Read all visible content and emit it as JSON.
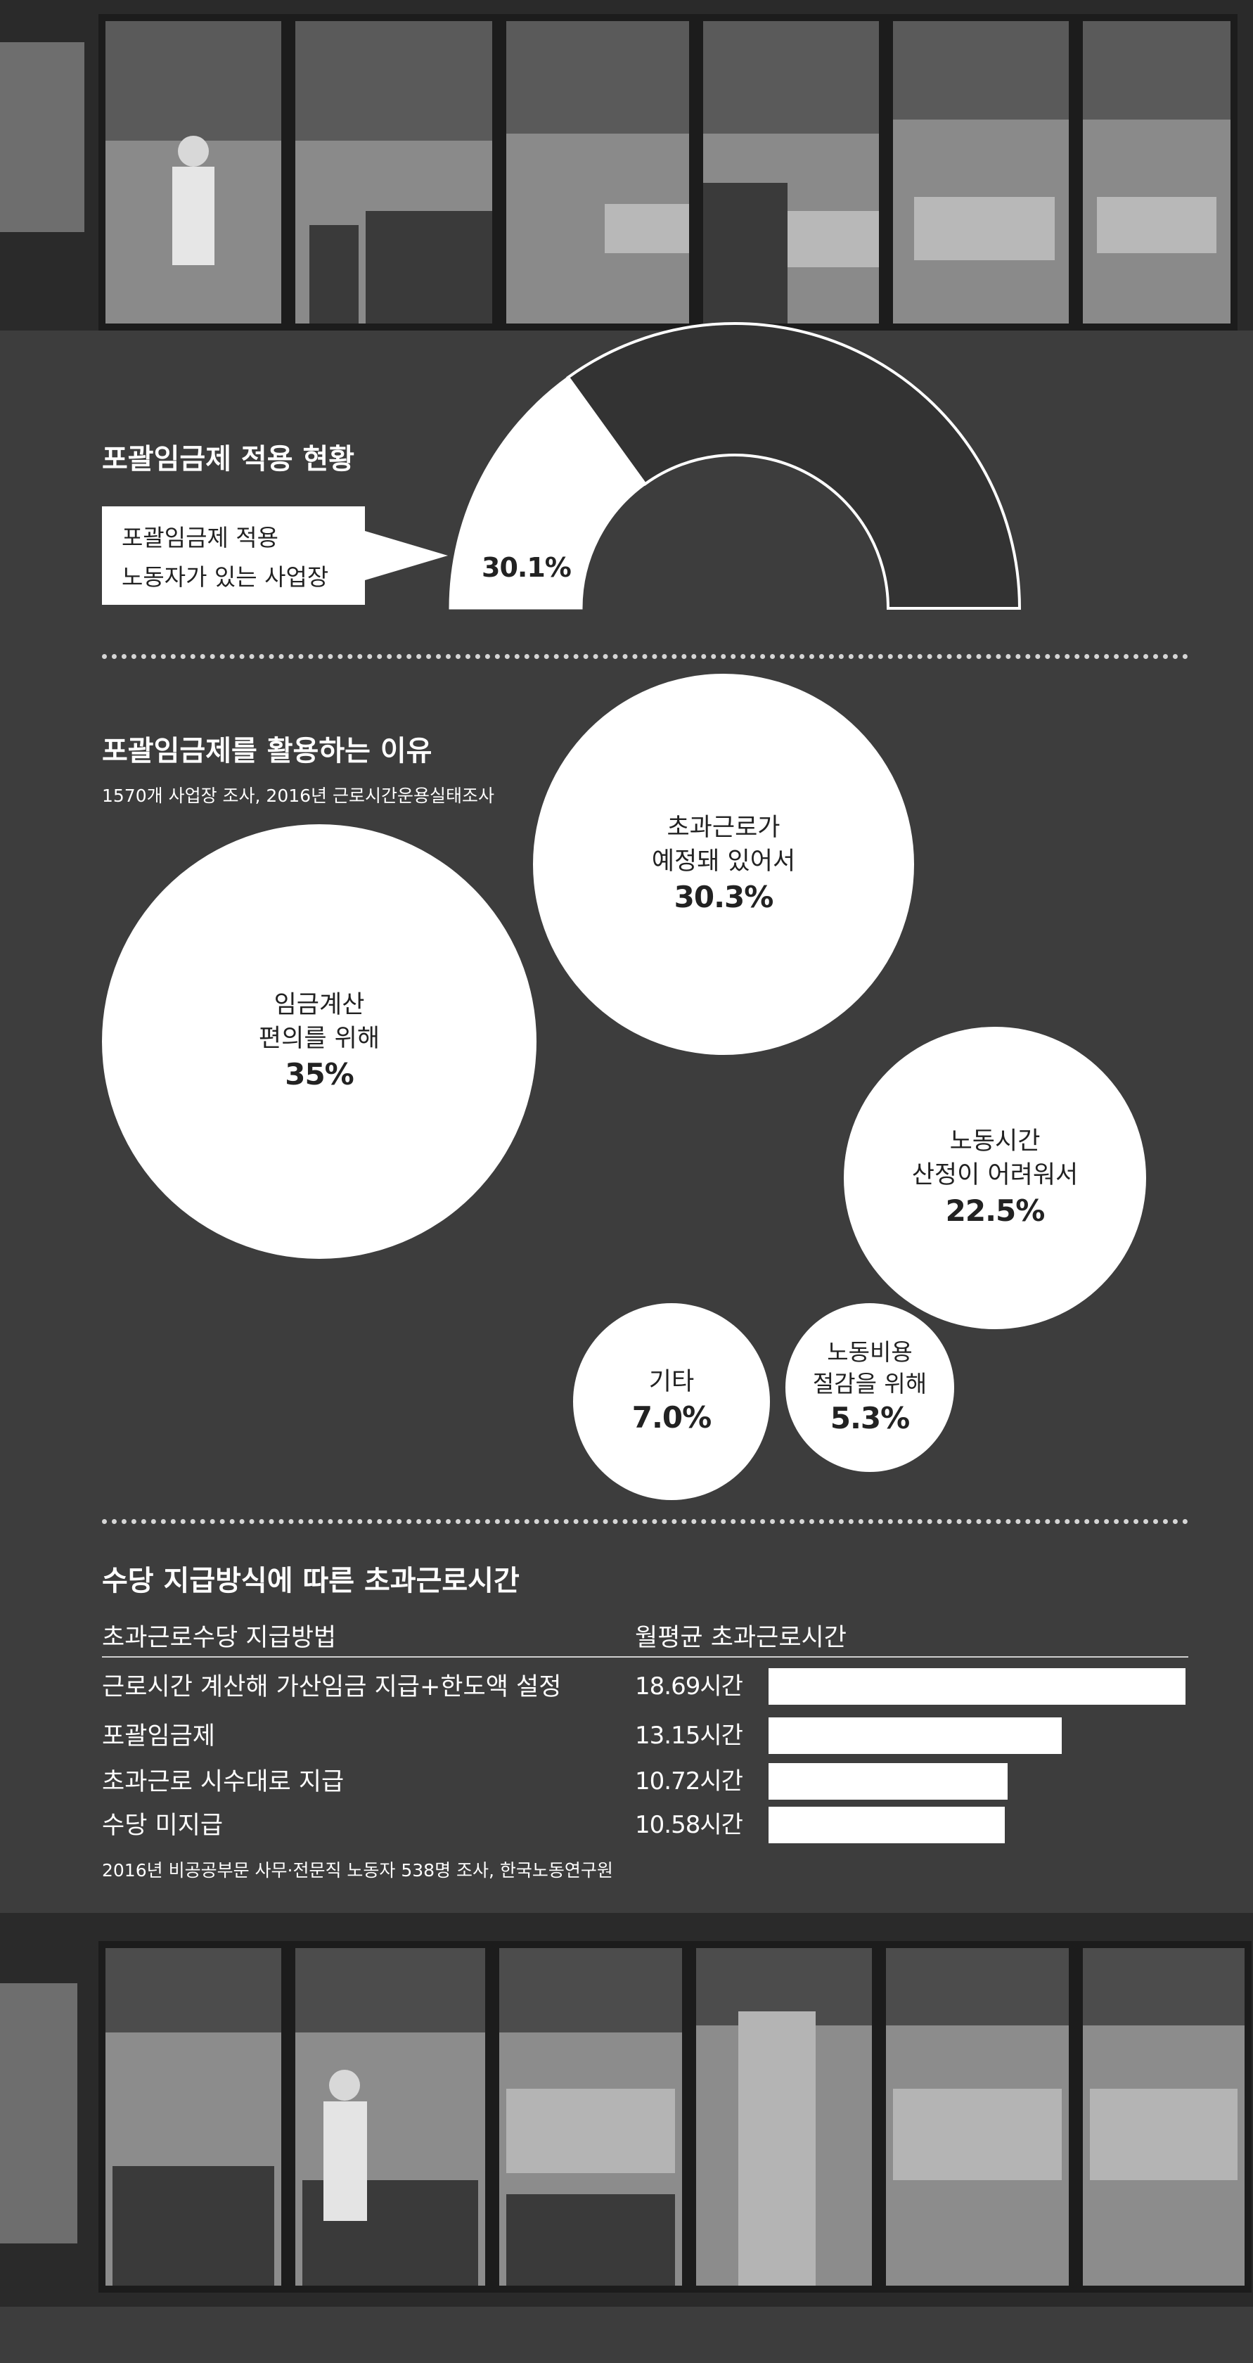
{
  "section1": {
    "title": "포괄임금제 적용 현황",
    "callout_lines": [
      "포괄임금제 적용",
      "노동자가 있는 사업장"
    ],
    "value_label": "30.1%",
    "value_pct": 30.1,
    "colors": {
      "applied": "#ffffff",
      "not_applied": "#333333",
      "outline": "#ffffff"
    }
  },
  "section2": {
    "title": "포괄임금제를 활용하는 이유",
    "subtitle": "1570개 사업장 조사, 2016년 근로시간운용실태조사",
    "bubbles": [
      {
        "lines": [
          "임금계산",
          "편의를 위해"
        ],
        "value_label": "35%",
        "value": 35
      },
      {
        "lines": [
          "초과근로가",
          "예정돼 있어서"
        ],
        "value_label": "30.3%",
        "value": 30.3
      },
      {
        "lines": [
          "노동시간",
          "산정이 어려워서"
        ],
        "value_label": "22.5%",
        "value": 22.5
      },
      {
        "lines": [
          "기타"
        ],
        "value_label": "7.0%",
        "value": 7.0
      },
      {
        "lines": [
          "노동비용",
          "절감을 위해"
        ],
        "value_label": "5.3%",
        "value": 5.3
      }
    ]
  },
  "section3": {
    "title": "수당 지급방식에 따른 초과근로시간",
    "col_headers": [
      "초과근로수당 지급방법",
      "월평균 초과근로시간"
    ],
    "rows": [
      {
        "label": "근로시간 계산해 가산임금 지급+한도액 설정",
        "value_label": "18.69시간",
        "value": 18.69
      },
      {
        "label": "포괄임금제",
        "value_label": "13.15시간",
        "value": 13.15
      },
      {
        "label": "초과근로 시수대로 지급",
        "value_label": "10.72시간",
        "value": 10.72
      },
      {
        "label": "수당 미지급",
        "value_label": "10.58시간",
        "value": 10.58
      }
    ],
    "source": "2016년 비공공부문 사무·전문직 노동자 538명 조사, 한국노동연구원"
  },
  "chart_data": [
    {
      "type": "pie",
      "title": "포괄임금제 적용 현황",
      "labels": [
        "포괄임금제 적용 노동자가 있는 사업장",
        ""
      ],
      "values": [
        30.1,
        69.9
      ],
      "unit": "%"
    },
    {
      "type": "bubble",
      "title": "포괄임금제를 활용하는 이유",
      "subtitle": "1570개 사업장 조사, 2016년 근로시간운용실태조사",
      "categories": [
        "임금계산 편의를 위해",
        "초과근로가 예정돼 있어서",
        "노동시간 산정이 어려워서",
        "기타",
        "노동비용 절감을 위해"
      ],
      "values": [
        35,
        30.3,
        22.5,
        7.0,
        5.3
      ],
      "unit": "%"
    },
    {
      "type": "bar",
      "orientation": "horizontal",
      "title": "수당 지급방식에 따른 초과근로시간",
      "categories": [
        "근로시간 계산해 가산임금 지급+한도액 설정",
        "포괄임금제",
        "초과근로 시수대로 지급",
        "수당 미지급"
      ],
      "values": [
        18.69,
        13.15,
        10.72,
        10.58
      ],
      "unit": "시간"
    }
  ]
}
